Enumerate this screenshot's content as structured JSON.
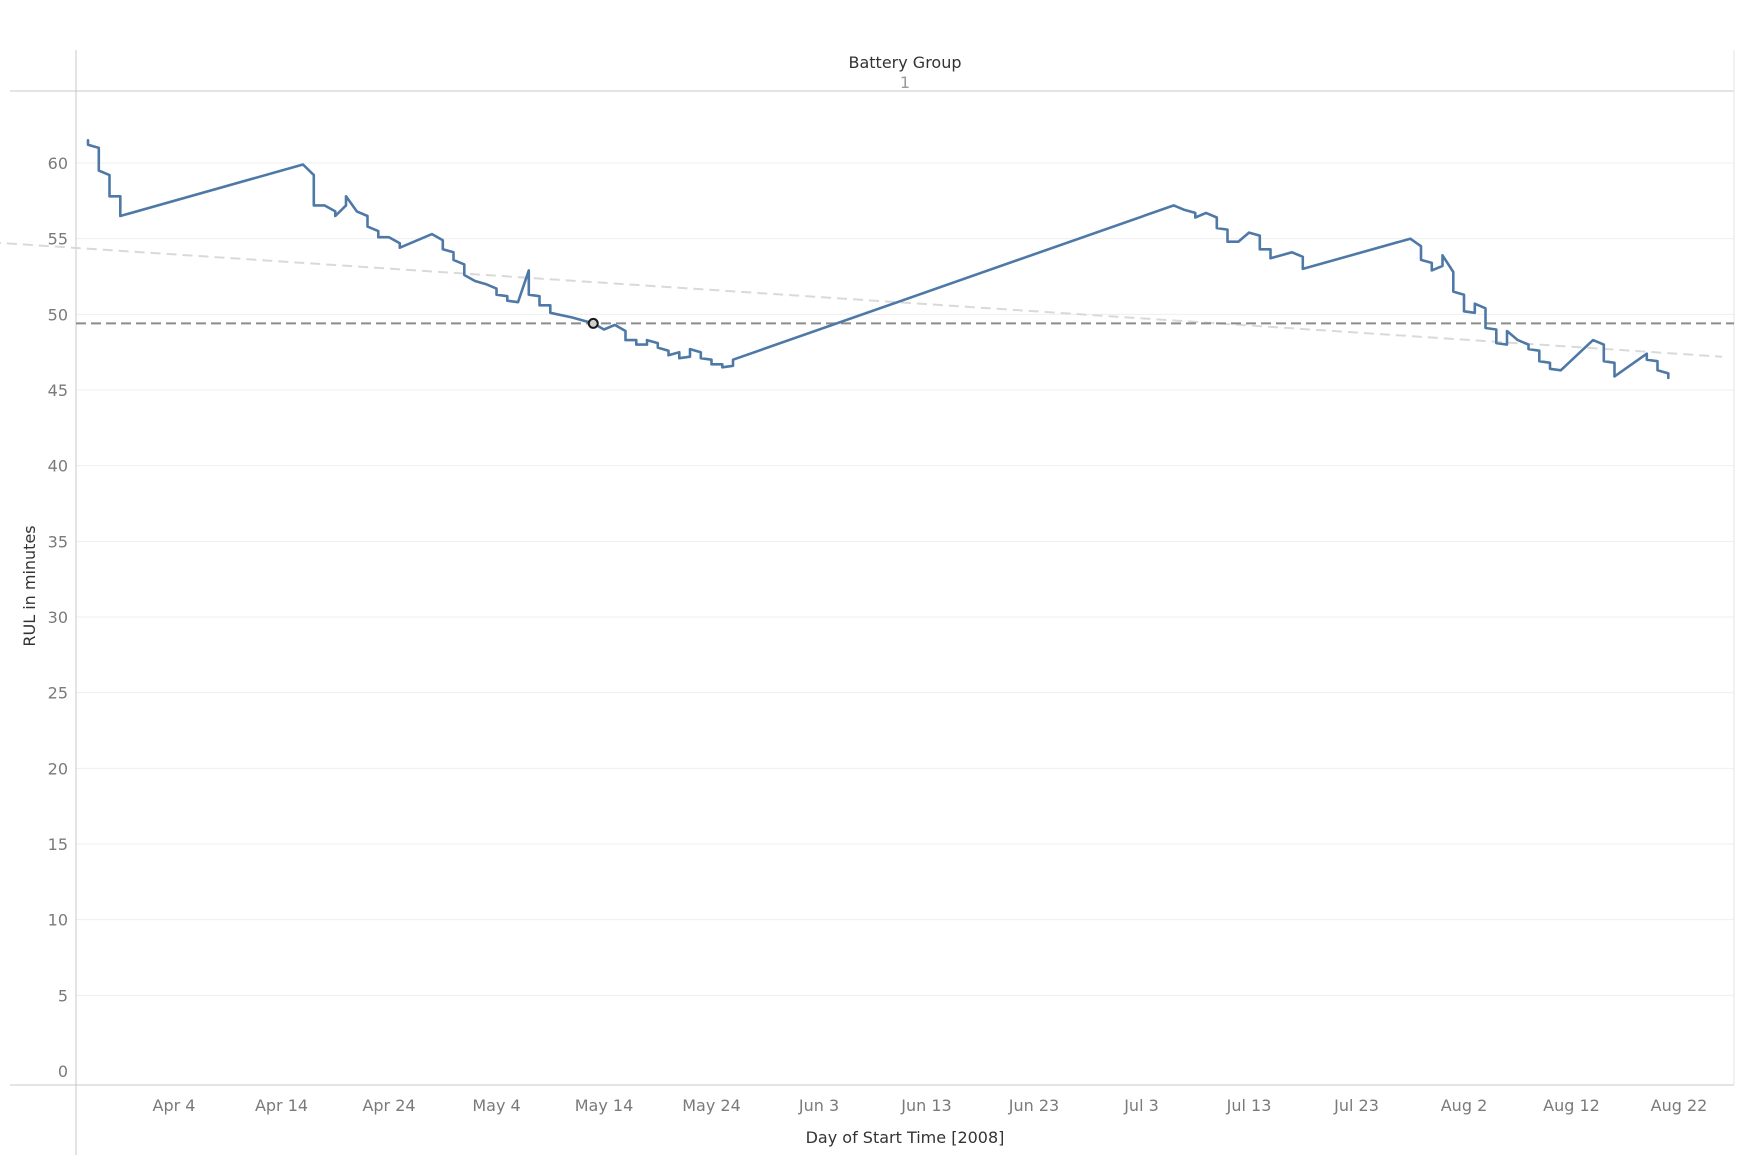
{
  "chart_data": {
    "type": "line",
    "header": {
      "title": "Battery Group",
      "value": "1"
    },
    "xlabel": "Day of Start Time [2008]",
    "ylabel": "RUL in minutes",
    "ylim": [
      0,
      63
    ],
    "yticks": [
      0,
      5,
      10,
      15,
      20,
      25,
      30,
      35,
      40,
      45,
      50,
      55,
      60
    ],
    "xticks": [
      "Apr 4",
      "Apr 14",
      "Apr 24",
      "May 4",
      "May 14",
      "May 24",
      "Jun 3",
      "Jun 13",
      "Jun 23",
      "Jul 3",
      "Jul 13",
      "Jul 23",
      "Aug 2",
      "Aug 12",
      "Aug 22"
    ],
    "grid": true,
    "colors": {
      "line": "#4e79a7",
      "reference": "#8c8c8c",
      "trend": "#d9d9d9",
      "axis": "#c8c8c8",
      "grid": "#efefef"
    },
    "reference_line": {
      "value": 49.4,
      "style": "dashed"
    },
    "trend_line": {
      "start": [
        "2008-03-15",
        54.9
      ],
      "end": [
        "2008-08-26",
        47.2
      ],
      "style": "dashed"
    },
    "highlight_point": {
      "x": "2008-05-13",
      "y": 49.4
    },
    "series": [
      {
        "points": [
          [
            "2008-03-27",
            61.5
          ],
          [
            "2008-03-27",
            61.2
          ],
          [
            "2008-03-28",
            61.0
          ],
          [
            "2008-03-28",
            59.5
          ],
          [
            "2008-03-29",
            59.2
          ],
          [
            "2008-03-29",
            57.8
          ],
          [
            "2008-03-30",
            57.8
          ],
          [
            "2008-03-30",
            56.5
          ],
          [
            "2008-04-16",
            59.9
          ],
          [
            "2008-04-17",
            59.2
          ],
          [
            "2008-04-17",
            57.2
          ],
          [
            "2008-04-18",
            57.2
          ],
          [
            "2008-04-19",
            56.8
          ],
          [
            "2008-04-19",
            56.5
          ],
          [
            "2008-04-20",
            57.2
          ],
          [
            "2008-04-20",
            57.8
          ],
          [
            "2008-04-21",
            56.8
          ],
          [
            "2008-04-22",
            56.5
          ],
          [
            "2008-04-22",
            55.8
          ],
          [
            "2008-04-23",
            55.5
          ],
          [
            "2008-04-23",
            55.1
          ],
          [
            "2008-04-24",
            55.1
          ],
          [
            "2008-04-25",
            54.7
          ],
          [
            "2008-04-25",
            54.4
          ],
          [
            "2008-04-28",
            55.3
          ],
          [
            "2008-04-29",
            54.9
          ],
          [
            "2008-04-29",
            54.3
          ],
          [
            "2008-04-30",
            54.1
          ],
          [
            "2008-04-30",
            53.6
          ],
          [
            "2008-05-01",
            53.3
          ],
          [
            "2008-05-01",
            52.6
          ],
          [
            "2008-05-02",
            52.2
          ],
          [
            "2008-05-03",
            52.0
          ],
          [
            "2008-05-04",
            51.7
          ],
          [
            "2008-05-04",
            51.3
          ],
          [
            "2008-05-05",
            51.2
          ],
          [
            "2008-05-05",
            50.9
          ],
          [
            "2008-05-06",
            50.8
          ],
          [
            "2008-05-07",
            52.9
          ],
          [
            "2008-05-07",
            51.3
          ],
          [
            "2008-05-08",
            51.2
          ],
          [
            "2008-05-08",
            50.6
          ],
          [
            "2008-05-09",
            50.6
          ],
          [
            "2008-05-09",
            50.1
          ],
          [
            "2008-05-11",
            49.8
          ],
          [
            "2008-05-13",
            49.4
          ],
          [
            "2008-05-14",
            49.0
          ],
          [
            "2008-05-15",
            49.3
          ],
          [
            "2008-05-16",
            48.9
          ],
          [
            "2008-05-16",
            48.3
          ],
          [
            "2008-05-17",
            48.3
          ],
          [
            "2008-05-17",
            48.0
          ],
          [
            "2008-05-18",
            48.0
          ],
          [
            "2008-05-18",
            48.3
          ],
          [
            "2008-05-19",
            48.1
          ],
          [
            "2008-05-19",
            47.8
          ],
          [
            "2008-05-20",
            47.6
          ],
          [
            "2008-05-20",
            47.3
          ],
          [
            "2008-05-21",
            47.5
          ],
          [
            "2008-05-21",
            47.1
          ],
          [
            "2008-05-22",
            47.2
          ],
          [
            "2008-05-22",
            47.7
          ],
          [
            "2008-05-23",
            47.5
          ],
          [
            "2008-05-23",
            47.1
          ],
          [
            "2008-05-24",
            47.0
          ],
          [
            "2008-05-24",
            46.7
          ],
          [
            "2008-05-25",
            46.7
          ],
          [
            "2008-05-25",
            46.5
          ],
          [
            "2008-05-26",
            46.6
          ],
          [
            "2008-05-26",
            47.0
          ],
          [
            "2008-07-06",
            57.2
          ],
          [
            "2008-07-07",
            56.9
          ],
          [
            "2008-07-08",
            56.7
          ],
          [
            "2008-07-08",
            56.4
          ],
          [
            "2008-07-09",
            56.7
          ],
          [
            "2008-07-10",
            56.4
          ],
          [
            "2008-07-10",
            55.7
          ],
          [
            "2008-07-11",
            55.6
          ],
          [
            "2008-07-11",
            54.8
          ],
          [
            "2008-07-12",
            54.8
          ],
          [
            "2008-07-13",
            55.4
          ],
          [
            "2008-07-14",
            55.2
          ],
          [
            "2008-07-14",
            54.3
          ],
          [
            "2008-07-15",
            54.3
          ],
          [
            "2008-07-15",
            53.7
          ],
          [
            "2008-07-17",
            54.1
          ],
          [
            "2008-07-18",
            53.8
          ],
          [
            "2008-07-18",
            53.0
          ],
          [
            "2008-07-28",
            55.0
          ],
          [
            "2008-07-29",
            54.5
          ],
          [
            "2008-07-29",
            53.6
          ],
          [
            "2008-07-30",
            53.4
          ],
          [
            "2008-07-30",
            52.9
          ],
          [
            "2008-07-31",
            53.2
          ],
          [
            "2008-07-31",
            53.9
          ],
          [
            "2008-08-01",
            52.8
          ],
          [
            "2008-08-01",
            51.5
          ],
          [
            "2008-08-02",
            51.3
          ],
          [
            "2008-08-02",
            50.2
          ],
          [
            "2008-08-03",
            50.1
          ],
          [
            "2008-08-03",
            50.7
          ],
          [
            "2008-08-04",
            50.4
          ],
          [
            "2008-08-04",
            49.1
          ],
          [
            "2008-08-05",
            49.0
          ],
          [
            "2008-08-05",
            48.1
          ],
          [
            "2008-08-06",
            48.0
          ],
          [
            "2008-08-06",
            48.9
          ],
          [
            "2008-08-07",
            48.3
          ],
          [
            "2008-08-08",
            48.0
          ],
          [
            "2008-08-08",
            47.7
          ],
          [
            "2008-08-09",
            47.6
          ],
          [
            "2008-08-09",
            46.9
          ],
          [
            "2008-08-10",
            46.8
          ],
          [
            "2008-08-10",
            46.4
          ],
          [
            "2008-08-11",
            46.3
          ],
          [
            "2008-08-14",
            48.3
          ],
          [
            "2008-08-15",
            48.0
          ],
          [
            "2008-08-15",
            46.9
          ],
          [
            "2008-08-16",
            46.8
          ],
          [
            "2008-08-16",
            45.9
          ],
          [
            "2008-08-19",
            47.4
          ],
          [
            "2008-08-19",
            47.0
          ],
          [
            "2008-08-20",
            46.9
          ],
          [
            "2008-08-20",
            46.3
          ],
          [
            "2008-08-21",
            46.1
          ],
          [
            "2008-08-21",
            45.8
          ]
        ]
      }
    ]
  }
}
